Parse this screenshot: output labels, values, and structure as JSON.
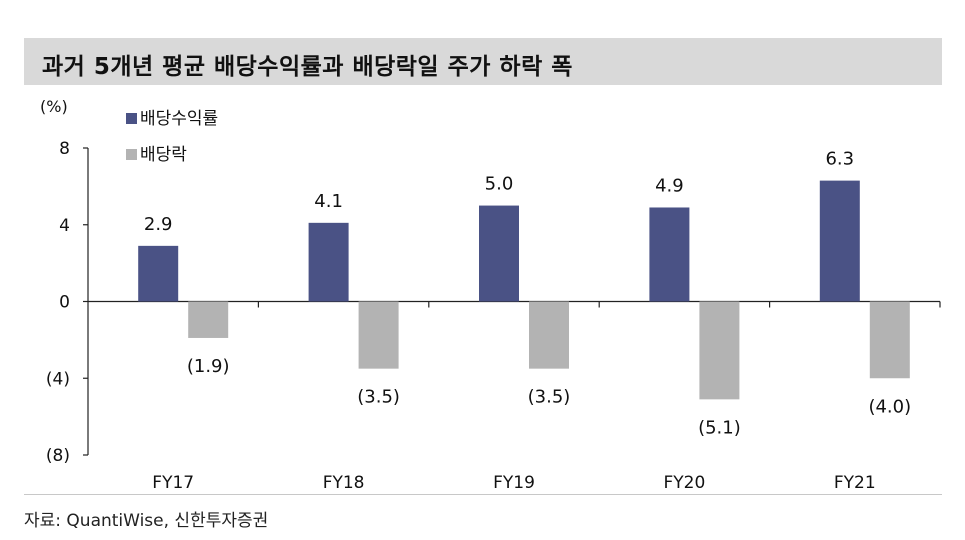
{
  "title": "과거 5개년 평균 배당수익률과 배당락일 주가 하락 폭",
  "source": "자료: QuantiWise, 신한투자증권",
  "chart_data": {
    "type": "bar",
    "unit": "(%)",
    "categories": [
      "FY17",
      "FY18",
      "FY19",
      "FY20",
      "FY21"
    ],
    "series": [
      {
        "name": "배당수익률",
        "color": "#4a5285",
        "values": [
          2.9,
          4.1,
          5.0,
          4.9,
          6.3
        ],
        "labels": [
          "2.9",
          "4.1",
          "5.0",
          "4.9",
          "6.3"
        ]
      },
      {
        "name": "배당락",
        "color": "#b3b3b3",
        "values": [
          -1.9,
          -3.5,
          -3.5,
          -5.1,
          -4.0
        ],
        "labels": [
          "(1.9)",
          "(3.5)",
          "(3.5)",
          "(5.1)",
          "(4.0)"
        ]
      }
    ],
    "ylim": [
      -8,
      8
    ],
    "yticks": [
      8,
      4,
      0,
      -4,
      -8
    ],
    "ytick_labels": [
      "8",
      "4",
      "0",
      "(4)",
      "(8)"
    ],
    "legend_position": "top-left",
    "grid": false
  }
}
